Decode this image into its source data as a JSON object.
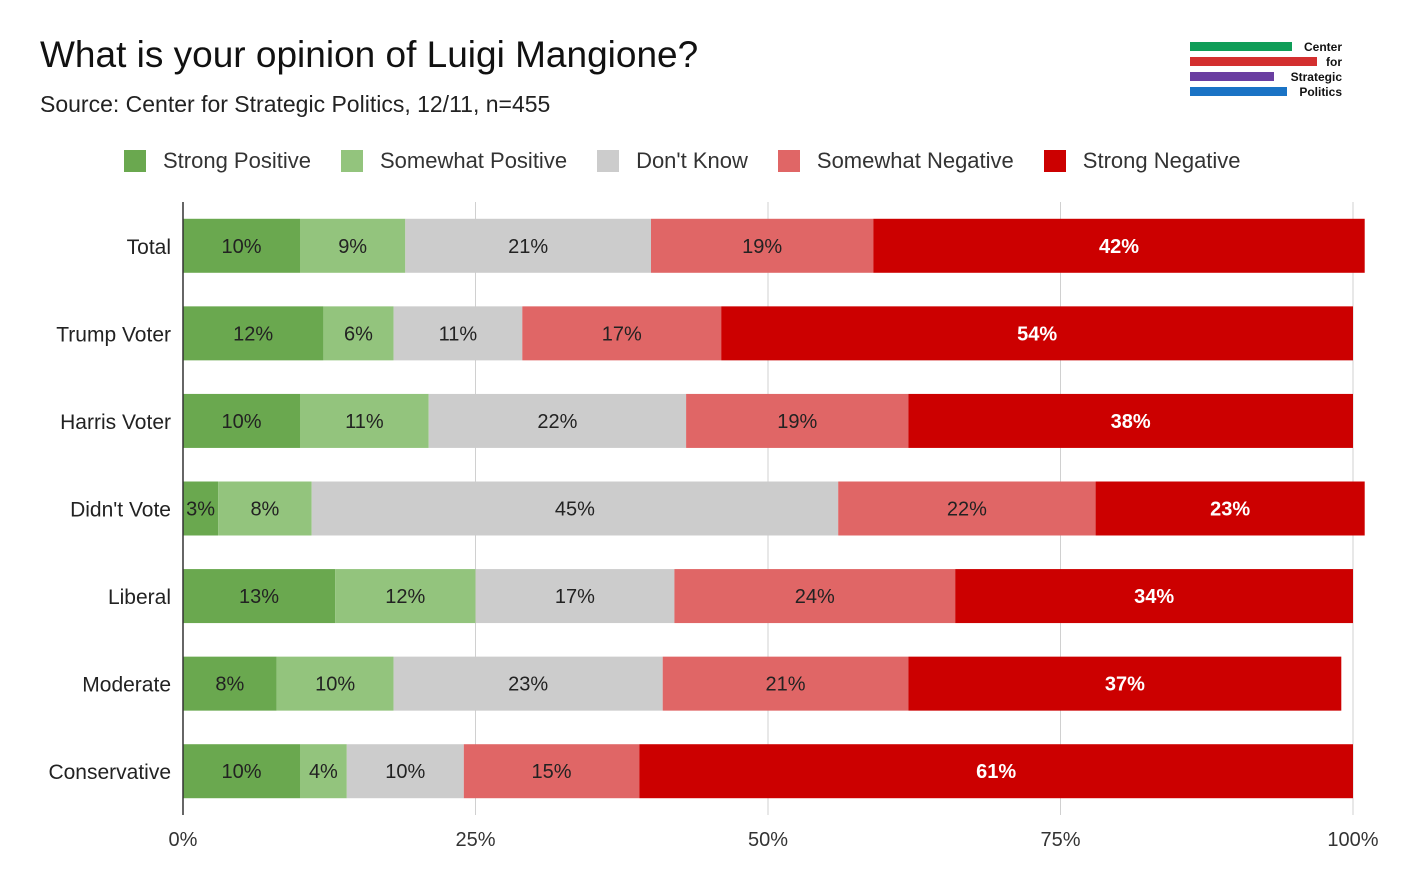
{
  "title": "What is your opinion of Luigi Mangione?",
  "subtitle": "Source: Center for Strategic Politics, 12/11, n=455",
  "logo": {
    "lines": [
      "Center",
      "for",
      "Strategic",
      "Politics"
    ],
    "colors": [
      "#0f9d58",
      "#d32f2f",
      "#6a3ea1",
      "#1a73c5"
    ]
  },
  "chart_data": {
    "type": "bar",
    "orientation": "horizontal",
    "stacked": true,
    "title": "What is your opinion of Luigi Mangione?",
    "subtitle": "Source: Center for Strategic Politics, 12/11, n=455",
    "categories": [
      "Total",
      "Trump Voter",
      "Harris Voter",
      "Didn't Vote",
      "Liberal",
      "Moderate",
      "Conservative"
    ],
    "series": [
      {
        "name": "Strong Positive",
        "color": "#6aa84f",
        "label_color": "#222222",
        "values": [
          10,
          12,
          10,
          3,
          13,
          8,
          10
        ]
      },
      {
        "name": "Somewhat Positive",
        "color": "#93c47d",
        "label_color": "#222222",
        "values": [
          9,
          6,
          11,
          8,
          12,
          10,
          4
        ]
      },
      {
        "name": "Don't Know",
        "color": "#cccccc",
        "label_color": "#222222",
        "values": [
          21,
          11,
          22,
          45,
          17,
          23,
          10
        ]
      },
      {
        "name": "Somewhat Negative",
        "color": "#e06666",
        "label_color": "#222222",
        "values": [
          19,
          17,
          19,
          22,
          24,
          21,
          15
        ]
      },
      {
        "name": "Strong Negative",
        "color": "#cc0000",
        "label_color": "#ffffff",
        "values": [
          42,
          54,
          38,
          23,
          34,
          37,
          61
        ]
      }
    ],
    "xlim": [
      0,
      100
    ],
    "xticks": [
      "0%",
      "25%",
      "50%",
      "75%",
      "100%"
    ],
    "grid": true,
    "legend_position": "top"
  }
}
